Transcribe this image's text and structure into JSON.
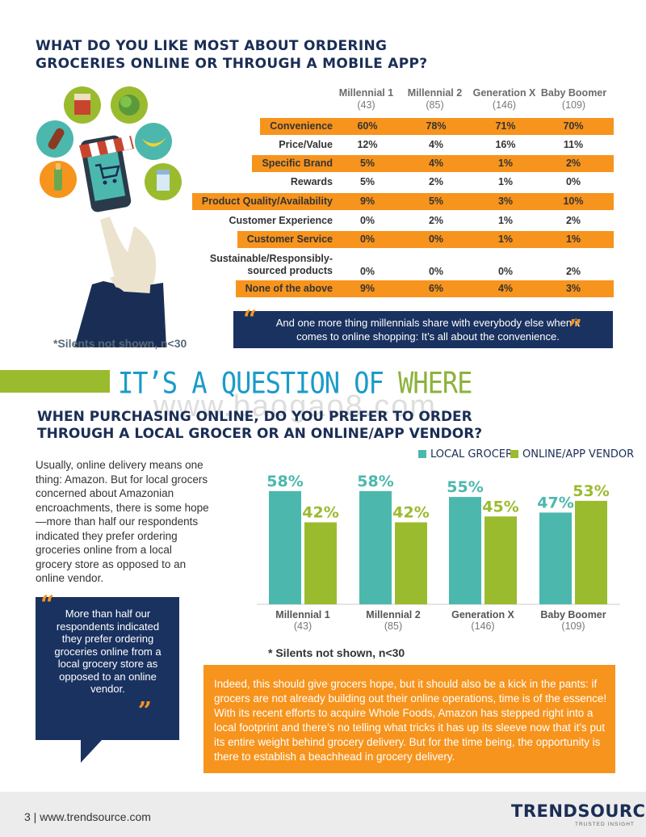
{
  "section1": {
    "title": "WHAT DO YOU LIKE MOST ABOUT ORDERING GROCERIES ONLINE OR THROUGH A MOBILE APP?",
    "columns": [
      {
        "name": "Millennial 1",
        "n": "(43)"
      },
      {
        "name": "Millennial 2",
        "n": "(85)"
      },
      {
        "name": "Generation X",
        "n": "(146)"
      },
      {
        "name": "Baby Boomer",
        "n": "(109)"
      }
    ],
    "rows": [
      {
        "label": "Convenience",
        "values": [
          "60%",
          "78%",
          "71%",
          "70%"
        ],
        "highlight": true
      },
      {
        "label": "Price/Value",
        "values": [
          "12%",
          "4%",
          "16%",
          "11%"
        ],
        "highlight": false
      },
      {
        "label": "Specific Brand",
        "values": [
          "5%",
          "4%",
          "1%",
          "2%"
        ],
        "highlight": true
      },
      {
        "label": "Rewards",
        "values": [
          "5%",
          "2%",
          "1%",
          "0%"
        ],
        "highlight": false
      },
      {
        "label": "Product Quality/Availability",
        "values": [
          "9%",
          "5%",
          "3%",
          "10%"
        ],
        "highlight": true
      },
      {
        "label": "Customer Experience",
        "values": [
          "0%",
          "2%",
          "1%",
          "2%"
        ],
        "highlight": false
      },
      {
        "label": "Customer Service",
        "values": [
          "0%",
          "0%",
          "1%",
          "1%"
        ],
        "highlight": true
      },
      {
        "label": "Sustainable/Responsibly-sourced products",
        "values": [
          "0%",
          "0%",
          "0%",
          "2%"
        ],
        "highlight": false
      },
      {
        "label": "None of the above",
        "values": [
          "9%",
          "6%",
          "4%",
          "3%"
        ],
        "highlight": true
      }
    ],
    "quote_open": "“",
    "quote": "And one more thing millennials share with everybody else when it comes to online shopping: It’s all about the convenience.",
    "quote_close": "”",
    "note": "*Silents not shown, n<30"
  },
  "section2": {
    "heading_part1": "IT’S A QUESTION OF ",
    "heading_part2": "WHERE",
    "watermark": "www.baogao8.com",
    "title": "WHEN PURCHASING ONLINE, DO YOU PREFER TO ORDER THROUGH A LOCAL GROCER OR AN ONLINE/APP VENDOR?",
    "body": "Usually, online delivery means one thing: Amazon. But for local grocers concerned about Amazonian encroachments, there is some hope—more than half our respondents indicated they prefer ordering groceries online from a local grocery store as opposed to an online vendor.",
    "quote_open": "“",
    "quote": "More than half our respondents indicated they prefer ordering groceries online from a local grocery store as opposed to an online vendor.",
    "quote_close": "”",
    "note": "* Silents not shown, n<30",
    "callout": "Indeed, this should give grocers hope, but it should also be a kick in the pants: if grocers are not already building out their online operations, time is of the essence! With its recent efforts to acquire Whole Foods, Amazon has stepped right into a local footprint and there’s no telling what tricks it has up its sleeve now that it’s put its entire weight behind grocery delivery. But for the time being, the opportunity is there to establish a beachhead in grocery delivery."
  },
  "chart_data": {
    "type": "bar",
    "categories": [
      "Millennial 1",
      "Millennial 2",
      "Generation X",
      "Baby Boomer"
    ],
    "category_n": [
      "(43)",
      "(85)",
      "(146)",
      "(109)"
    ],
    "series": [
      {
        "name": "LOCAL GROCER",
        "values": [
          58,
          58,
          55,
          47
        ],
        "labels": [
          "58%",
          "58%",
          "55%",
          "47%"
        ],
        "color": "#4cb8ad"
      },
      {
        "name": "ONLINE/APP VENDOR",
        "values": [
          42,
          42,
          45,
          53
        ],
        "labels": [
          "42%",
          "42%",
          "45%",
          "53%"
        ],
        "color": "#9bbb2f"
      }
    ],
    "ylim": [
      0,
      60
    ],
    "grid": false,
    "legend": "top-right"
  },
  "colors": {
    "navy": "#1a2e55",
    "orange": "#f7941d",
    "teal": "#4cb8ad",
    "green": "#9bbb2f",
    "blue": "#1a9bc9"
  },
  "footer": {
    "page": "3  |  www.trendsource.com",
    "logo": "TRENDSOURCE",
    "tagline": "TRUSTED INSIGHT"
  }
}
